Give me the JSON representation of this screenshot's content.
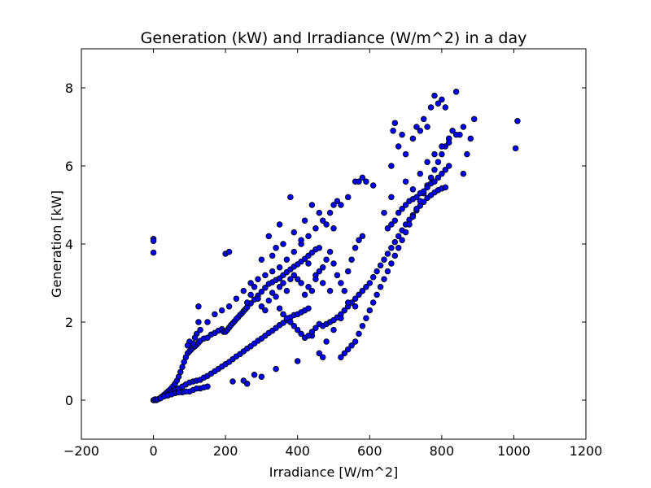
{
  "chart_data": {
    "type": "scatter",
    "title": "Generation (kW) and Irradiance (W/m^2) in a day",
    "xlabel": "Irradiance [W/m^2]",
    "ylabel": "Generation [kW]",
    "xlim": [
      -200,
      1200
    ],
    "ylim": [
      -1,
      9
    ],
    "xticks": [
      -200,
      0,
      200,
      400,
      600,
      800,
      1000,
      1200
    ],
    "yticks": [
      0,
      2,
      4,
      6,
      8
    ],
    "grid": false,
    "legend": "none",
    "marker_color": "#0000ff",
    "edge_color": "#000000",
    "points": [
      [
        0,
        0
      ],
      [
        3,
        0
      ],
      [
        5,
        0.02
      ],
      [
        2,
        0.01
      ],
      [
        0,
        4.13
      ],
      [
        0,
        4.08
      ],
      [
        0,
        3.78
      ],
      [
        8,
        0
      ],
      [
        12,
        0.02
      ],
      [
        18,
        0.05
      ],
      [
        22,
        0.08
      ],
      [
        25,
        0.1
      ],
      [
        30,
        0.14
      ],
      [
        35,
        0.18
      ],
      [
        40,
        0.22
      ],
      [
        45,
        0.26
      ],
      [
        50,
        0.31
      ],
      [
        55,
        0.36
      ],
      [
        60,
        0.42
      ],
      [
        65,
        0.5
      ],
      [
        70,
        0.6
      ],
      [
        75,
        0.72
      ],
      [
        80,
        0.85
      ],
      [
        85,
        0.98
      ],
      [
        90,
        1.1
      ],
      [
        95,
        1.2
      ],
      [
        100,
        1.25
      ],
      [
        105,
        1.3
      ],
      [
        110,
        1.35
      ],
      [
        115,
        1.38
      ],
      [
        120,
        1.42
      ],
      [
        125,
        1.47
      ],
      [
        130,
        1.52
      ],
      [
        140,
        1.58
      ],
      [
        150,
        1.6
      ],
      [
        160,
        1.68
      ],
      [
        170,
        1.72
      ],
      [
        180,
        1.78
      ],
      [
        190,
        1.82
      ],
      [
        195,
        1.75
      ],
      [
        200,
        1.75
      ],
      [
        205,
        1.8
      ],
      [
        210,
        1.86
      ],
      [
        215,
        1.92
      ],
      [
        220,
        1.97
      ],
      [
        225,
        2.02
      ],
      [
        230,
        2.08
      ],
      [
        235,
        2.12
      ],
      [
        240,
        2.18
      ],
      [
        245,
        2.22
      ],
      [
        250,
        2.28
      ],
      [
        255,
        2.33
      ],
      [
        260,
        2.38
      ],
      [
        270,
        2.48
      ],
      [
        280,
        2.58
      ],
      [
        290,
        2.68
      ],
      [
        300,
        2.78
      ],
      [
        310,
        2.88
      ],
      [
        320,
        2.98
      ],
      [
        330,
        3.02
      ],
      [
        340,
        3.08
      ],
      [
        350,
        3.12
      ],
      [
        360,
        3.2
      ],
      [
        370,
        3.28
      ],
      [
        380,
        3.35
      ],
      [
        390,
        3.42
      ],
      [
        400,
        3.48
      ],
      [
        410,
        3.55
      ],
      [
        420,
        3.62
      ],
      [
        430,
        3.7
      ],
      [
        440,
        3.78
      ],
      [
        450,
        3.86
      ],
      [
        460,
        3.9
      ],
      [
        20,
        0.05
      ],
      [
        30,
        0.1
      ],
      [
        40,
        0.15
      ],
      [
        50,
        0.2
      ],
      [
        60,
        0.25
      ],
      [
        70,
        0.3
      ],
      [
        80,
        0.35
      ],
      [
        90,
        0.4
      ],
      [
        100,
        0.45
      ],
      [
        110,
        0.48
      ],
      [
        120,
        0.5
      ],
      [
        130,
        0.52
      ],
      [
        140,
        0.58
      ],
      [
        150,
        0.62
      ],
      [
        160,
        0.68
      ],
      [
        170,
        0.74
      ],
      [
        180,
        0.8
      ],
      [
        190,
        0.86
      ],
      [
        200,
        0.92
      ],
      [
        210,
        0.98
      ],
      [
        220,
        1.05
      ],
      [
        230,
        1.12
      ],
      [
        240,
        1.18
      ],
      [
        250,
        1.25
      ],
      [
        260,
        1.32
      ],
      [
        270,
        1.38
      ],
      [
        280,
        1.45
      ],
      [
        290,
        1.52
      ],
      [
        300,
        1.58
      ],
      [
        310,
        1.65
      ],
      [
        320,
        1.72
      ],
      [
        330,
        1.78
      ],
      [
        340,
        1.85
      ],
      [
        350,
        1.92
      ],
      [
        360,
        1.98
      ],
      [
        370,
        2.05
      ],
      [
        380,
        2.12
      ],
      [
        390,
        2.18
      ],
      [
        400,
        2.2
      ],
      [
        410,
        2.25
      ],
      [
        420,
        2.3
      ],
      [
        430,
        2.35
      ],
      [
        40,
        0.12
      ],
      [
        60,
        0.18
      ],
      [
        80,
        0.2
      ],
      [
        100,
        0.22
      ],
      [
        50,
        0.15
      ],
      [
        70,
        0.2
      ],
      [
        90,
        0.22
      ],
      [
        110,
        0.26
      ],
      [
        130,
        0.3
      ],
      [
        150,
        0.35
      ],
      [
        120,
        0.3
      ],
      [
        140,
        0.33
      ],
      [
        470,
        1.9
      ],
      [
        480,
        1.95
      ],
      [
        490,
        2.0
      ],
      [
        500,
        2.05
      ],
      [
        510,
        2.12
      ],
      [
        520,
        2.2
      ],
      [
        530,
        2.3
      ],
      [
        540,
        2.4
      ],
      [
        550,
        2.5
      ],
      [
        560,
        2.6
      ],
      [
        570,
        2.7
      ],
      [
        580,
        2.8
      ],
      [
        590,
        2.9
      ],
      [
        600,
        3.0
      ],
      [
        610,
        3.15
      ],
      [
        620,
        3.3
      ],
      [
        630,
        3.45
      ],
      [
        640,
        3.6
      ],
      [
        650,
        3.75
      ],
      [
        660,
        3.9
      ],
      [
        670,
        4.05
      ],
      [
        680,
        4.2
      ],
      [
        690,
        4.35
      ],
      [
        700,
        4.5
      ],
      [
        710,
        4.62
      ],
      [
        720,
        4.74
      ],
      [
        730,
        4.86
      ],
      [
        740,
        4.98
      ],
      [
        750,
        5.08
      ],
      [
        760,
        5.18
      ],
      [
        770,
        5.25
      ],
      [
        780,
        5.32
      ],
      [
        790,
        5.38
      ],
      [
        800,
        5.42
      ],
      [
        810,
        5.45
      ],
      [
        520,
        1.1
      ],
      [
        530,
        1.2
      ],
      [
        540,
        1.3
      ],
      [
        550,
        1.4
      ],
      [
        560,
        1.5
      ],
      [
        570,
        1.7
      ],
      [
        580,
        1.9
      ],
      [
        590,
        2.1
      ],
      [
        600,
        2.3
      ],
      [
        610,
        2.5
      ],
      [
        620,
        2.7
      ],
      [
        630,
        2.9
      ],
      [
        640,
        3.1
      ],
      [
        650,
        3.3
      ],
      [
        660,
        3.5
      ],
      [
        670,
        3.7
      ],
      [
        680,
        3.9
      ],
      [
        690,
        4.1
      ],
      [
        700,
        4.3
      ],
      [
        710,
        4.5
      ],
      [
        720,
        4.7
      ],
      [
        730,
        4.9
      ],
      [
        740,
        5.1
      ],
      [
        750,
        5.3
      ],
      [
        760,
        5.5
      ],
      [
        770,
        5.7
      ],
      [
        780,
        5.9
      ],
      [
        790,
        6.1
      ],
      [
        800,
        6.3
      ],
      [
        810,
        6.5
      ],
      [
        820,
        6.7
      ],
      [
        830,
        6.9
      ],
      [
        150,
        2.0
      ],
      [
        170,
        2.2
      ],
      [
        190,
        2.3
      ],
      [
        210,
        2.4
      ],
      [
        230,
        2.6
      ],
      [
        250,
        2.8
      ],
      [
        270,
        3.0
      ],
      [
        290,
        3.1
      ],
      [
        310,
        3.2
      ],
      [
        330,
        3.3
      ],
      [
        350,
        3.4
      ],
      [
        370,
        3.6
      ],
      [
        390,
        3.8
      ],
      [
        410,
        4.0
      ],
      [
        430,
        4.2
      ],
      [
        450,
        4.4
      ],
      [
        470,
        4.6
      ],
      [
        490,
        4.8
      ],
      [
        500,
        5.0
      ],
      [
        510,
        5.1
      ],
      [
        520,
        5.0
      ],
      [
        540,
        5.2
      ],
      [
        560,
        5.6
      ],
      [
        570,
        5.6
      ],
      [
        580,
        5.7
      ],
      [
        590,
        5.6
      ],
      [
        610,
        5.5
      ],
      [
        200,
        3.75
      ],
      [
        210,
        3.8
      ],
      [
        320,
        4.2
      ],
      [
        350,
        4.5
      ],
      [
        380,
        5.2
      ],
      [
        420,
        4.6
      ],
      [
        440,
        5.0
      ],
      [
        460,
        4.8
      ],
      [
        480,
        4.5
      ],
      [
        500,
        4.4
      ],
      [
        300,
        3.6
      ],
      [
        330,
        3.7
      ],
      [
        340,
        3.9
      ],
      [
        360,
        4.0
      ],
      [
        390,
        4.3
      ],
      [
        410,
        4.1
      ],
      [
        430,
        3.5
      ],
      [
        450,
        3.2
      ],
      [
        470,
        3.0
      ],
      [
        490,
        2.8
      ],
      [
        280,
        0.65
      ],
      [
        300,
        0.6
      ],
      [
        250,
        0.5
      ],
      [
        260,
        0.42
      ],
      [
        220,
        0.48
      ],
      [
        340,
        0.8
      ],
      [
        400,
        1.0
      ],
      [
        420,
        1.6
      ],
      [
        440,
        1.65
      ],
      [
        460,
        1.2
      ],
      [
        470,
        1.1
      ],
      [
        480,
        1.5
      ],
      [
        500,
        1.8
      ],
      [
        520,
        2.1
      ],
      [
        540,
        2.5
      ],
      [
        560,
        2.4
      ],
      [
        580,
        2.8
      ],
      [
        120,
        1.7
      ],
      [
        130,
        1.8
      ],
      [
        125,
        2.0
      ],
      [
        125,
        2.4
      ],
      [
        115,
        1.6
      ],
      [
        110,
        1.45
      ],
      [
        100,
        1.5
      ],
      [
        95,
        1.4
      ],
      [
        660,
        6.0
      ],
      [
        665,
        6.9
      ],
      [
        670,
        7.1
      ],
      [
        680,
        6.5
      ],
      [
        690,
        6.8
      ],
      [
        700,
        6.3
      ],
      [
        720,
        6.7
      ],
      [
        730,
        7.0
      ],
      [
        740,
        6.9
      ],
      [
        750,
        7.2
      ],
      [
        760,
        7.0
      ],
      [
        770,
        7.5
      ],
      [
        780,
        7.8
      ],
      [
        790,
        7.6
      ],
      [
        800,
        7.7
      ],
      [
        810,
        7.5
      ],
      [
        820,
        6.7
      ],
      [
        840,
        7.9
      ],
      [
        850,
        6.8
      ],
      [
        860,
        5.8
      ],
      [
        870,
        6.3
      ],
      [
        880,
        6.7
      ],
      [
        890,
        7.2
      ],
      [
        1005,
        6.45
      ],
      [
        1010,
        7.15
      ],
      [
        660,
        4.5
      ],
      [
        670,
        4.6
      ],
      [
        680,
        4.8
      ],
      [
        690,
        4.9
      ],
      [
        700,
        5.0
      ],
      [
        710,
        5.1
      ],
      [
        720,
        5.15
      ],
      [
        730,
        5.2
      ],
      [
        740,
        5.3
      ],
      [
        750,
        5.35
      ],
      [
        760,
        5.45
      ],
      [
        770,
        5.55
      ],
      [
        780,
        5.6
      ],
      [
        790,
        5.7
      ],
      [
        800,
        5.8
      ],
      [
        810,
        5.9
      ],
      [
        820,
        6.0
      ],
      [
        640,
        4.8
      ],
      [
        650,
        4.4
      ],
      [
        660,
        5.2
      ],
      [
        700,
        5.6
      ],
      [
        720,
        5.4
      ],
      [
        740,
        5.8
      ],
      [
        760,
        6.1
      ],
      [
        780,
        6.3
      ],
      [
        800,
        6.5
      ],
      [
        820,
        6.6
      ],
      [
        840,
        6.8
      ],
      [
        860,
        7.0
      ],
      [
        350,
        2.9
      ],
      [
        360,
        3.0
      ],
      [
        370,
        2.8
      ],
      [
        380,
        3.1
      ],
      [
        390,
        3.2
      ],
      [
        400,
        3.1
      ],
      [
        410,
        3.0
      ],
      [
        420,
        2.7
      ],
      [
        430,
        2.9
      ],
      [
        440,
        2.8
      ],
      [
        450,
        3.1
      ],
      [
        460,
        3.3
      ],
      [
        470,
        3.4
      ],
      [
        480,
        3.6
      ],
      [
        490,
        3.8
      ],
      [
        500,
        3.5
      ],
      [
        510,
        3.2
      ],
      [
        520,
        3.0
      ],
      [
        530,
        2.8
      ],
      [
        540,
        3.3
      ],
      [
        550,
        3.6
      ],
      [
        560,
        3.9
      ],
      [
        570,
        4.1
      ],
      [
        580,
        4.2
      ],
      [
        260,
        2.5
      ],
      [
        270,
        2.7
      ],
      [
        280,
        2.9
      ],
      [
        290,
        2.6
      ],
      [
        300,
        2.4
      ],
      [
        310,
        2.3
      ],
      [
        320,
        2.55
      ],
      [
        330,
        2.75
      ],
      [
        340,
        2.65
      ],
      [
        350,
        2.35
      ],
      [
        360,
        2.2
      ],
      [
        370,
        2.1
      ],
      [
        380,
        2.0
      ],
      [
        390,
        1.9
      ],
      [
        400,
        1.8
      ],
      [
        410,
        1.7
      ],
      [
        420,
        1.6
      ],
      [
        430,
        1.65
      ],
      [
        440,
        1.75
      ],
      [
        450,
        1.85
      ],
      [
        460,
        1.95
      ]
    ]
  }
}
